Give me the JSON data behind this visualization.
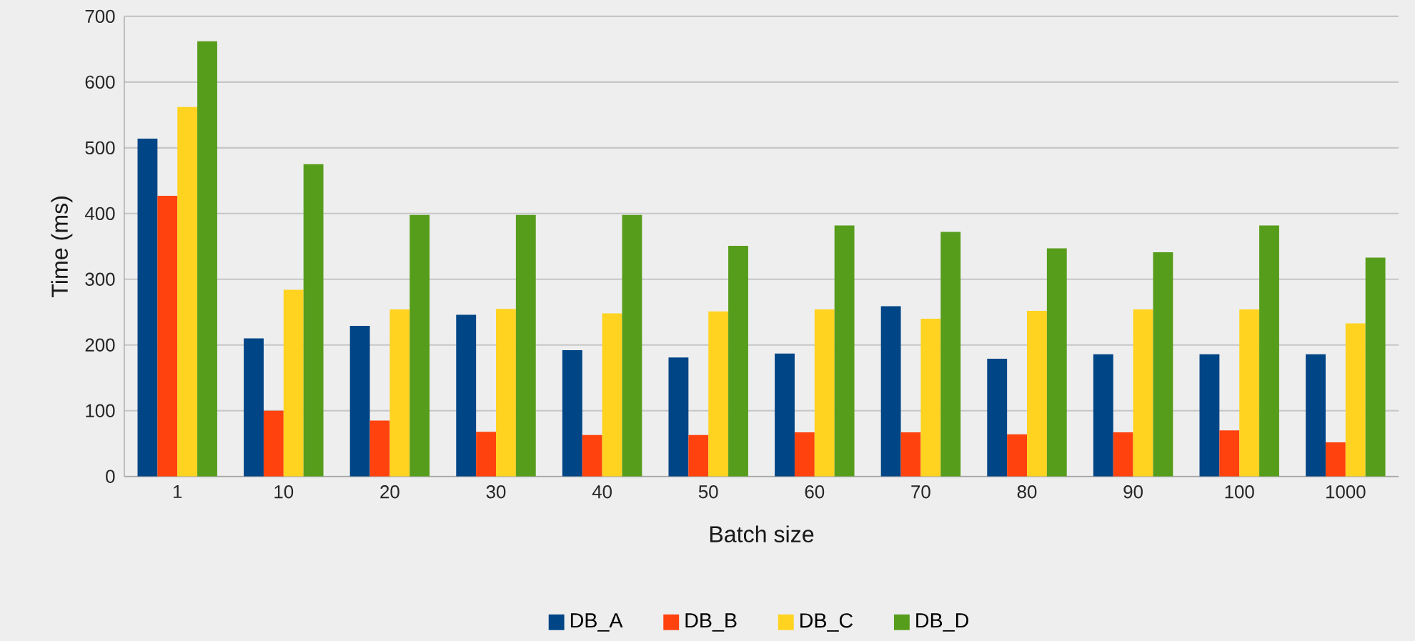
{
  "chart_data": {
    "type": "bar",
    "xlabel": "Batch size",
    "ylabel": "Time (ms)",
    "categories": [
      "1",
      "10",
      "20",
      "30",
      "40",
      "50",
      "60",
      "70",
      "80",
      "90",
      "100",
      "1000"
    ],
    "series": [
      {
        "name": "DB_A",
        "color": "#004586",
        "values": [
          514,
          210,
          229,
          246,
          192,
          181,
          187,
          259,
          179,
          186,
          186,
          186
        ]
      },
      {
        "name": "DB_B",
        "color": "#ff420e",
        "values": [
          427,
          100,
          85,
          68,
          63,
          63,
          67,
          67,
          64,
          67,
          70,
          52
        ]
      },
      {
        "name": "DB_C",
        "color": "#ffd320",
        "values": [
          562,
          284,
          254,
          255,
          248,
          251,
          254,
          240,
          252,
          254,
          254,
          233
        ]
      },
      {
        "name": "DB_D",
        "color": "#579d1c",
        "values": [
          662,
          475,
          398,
          398,
          398,
          351,
          382,
          372,
          347,
          341,
          382,
          333
        ]
      }
    ],
    "ylim": [
      0,
      700
    ],
    "yticks": [
      0,
      100,
      200,
      300,
      400,
      500,
      600,
      700
    ],
    "grid": "y",
    "legend": "bottom"
  }
}
